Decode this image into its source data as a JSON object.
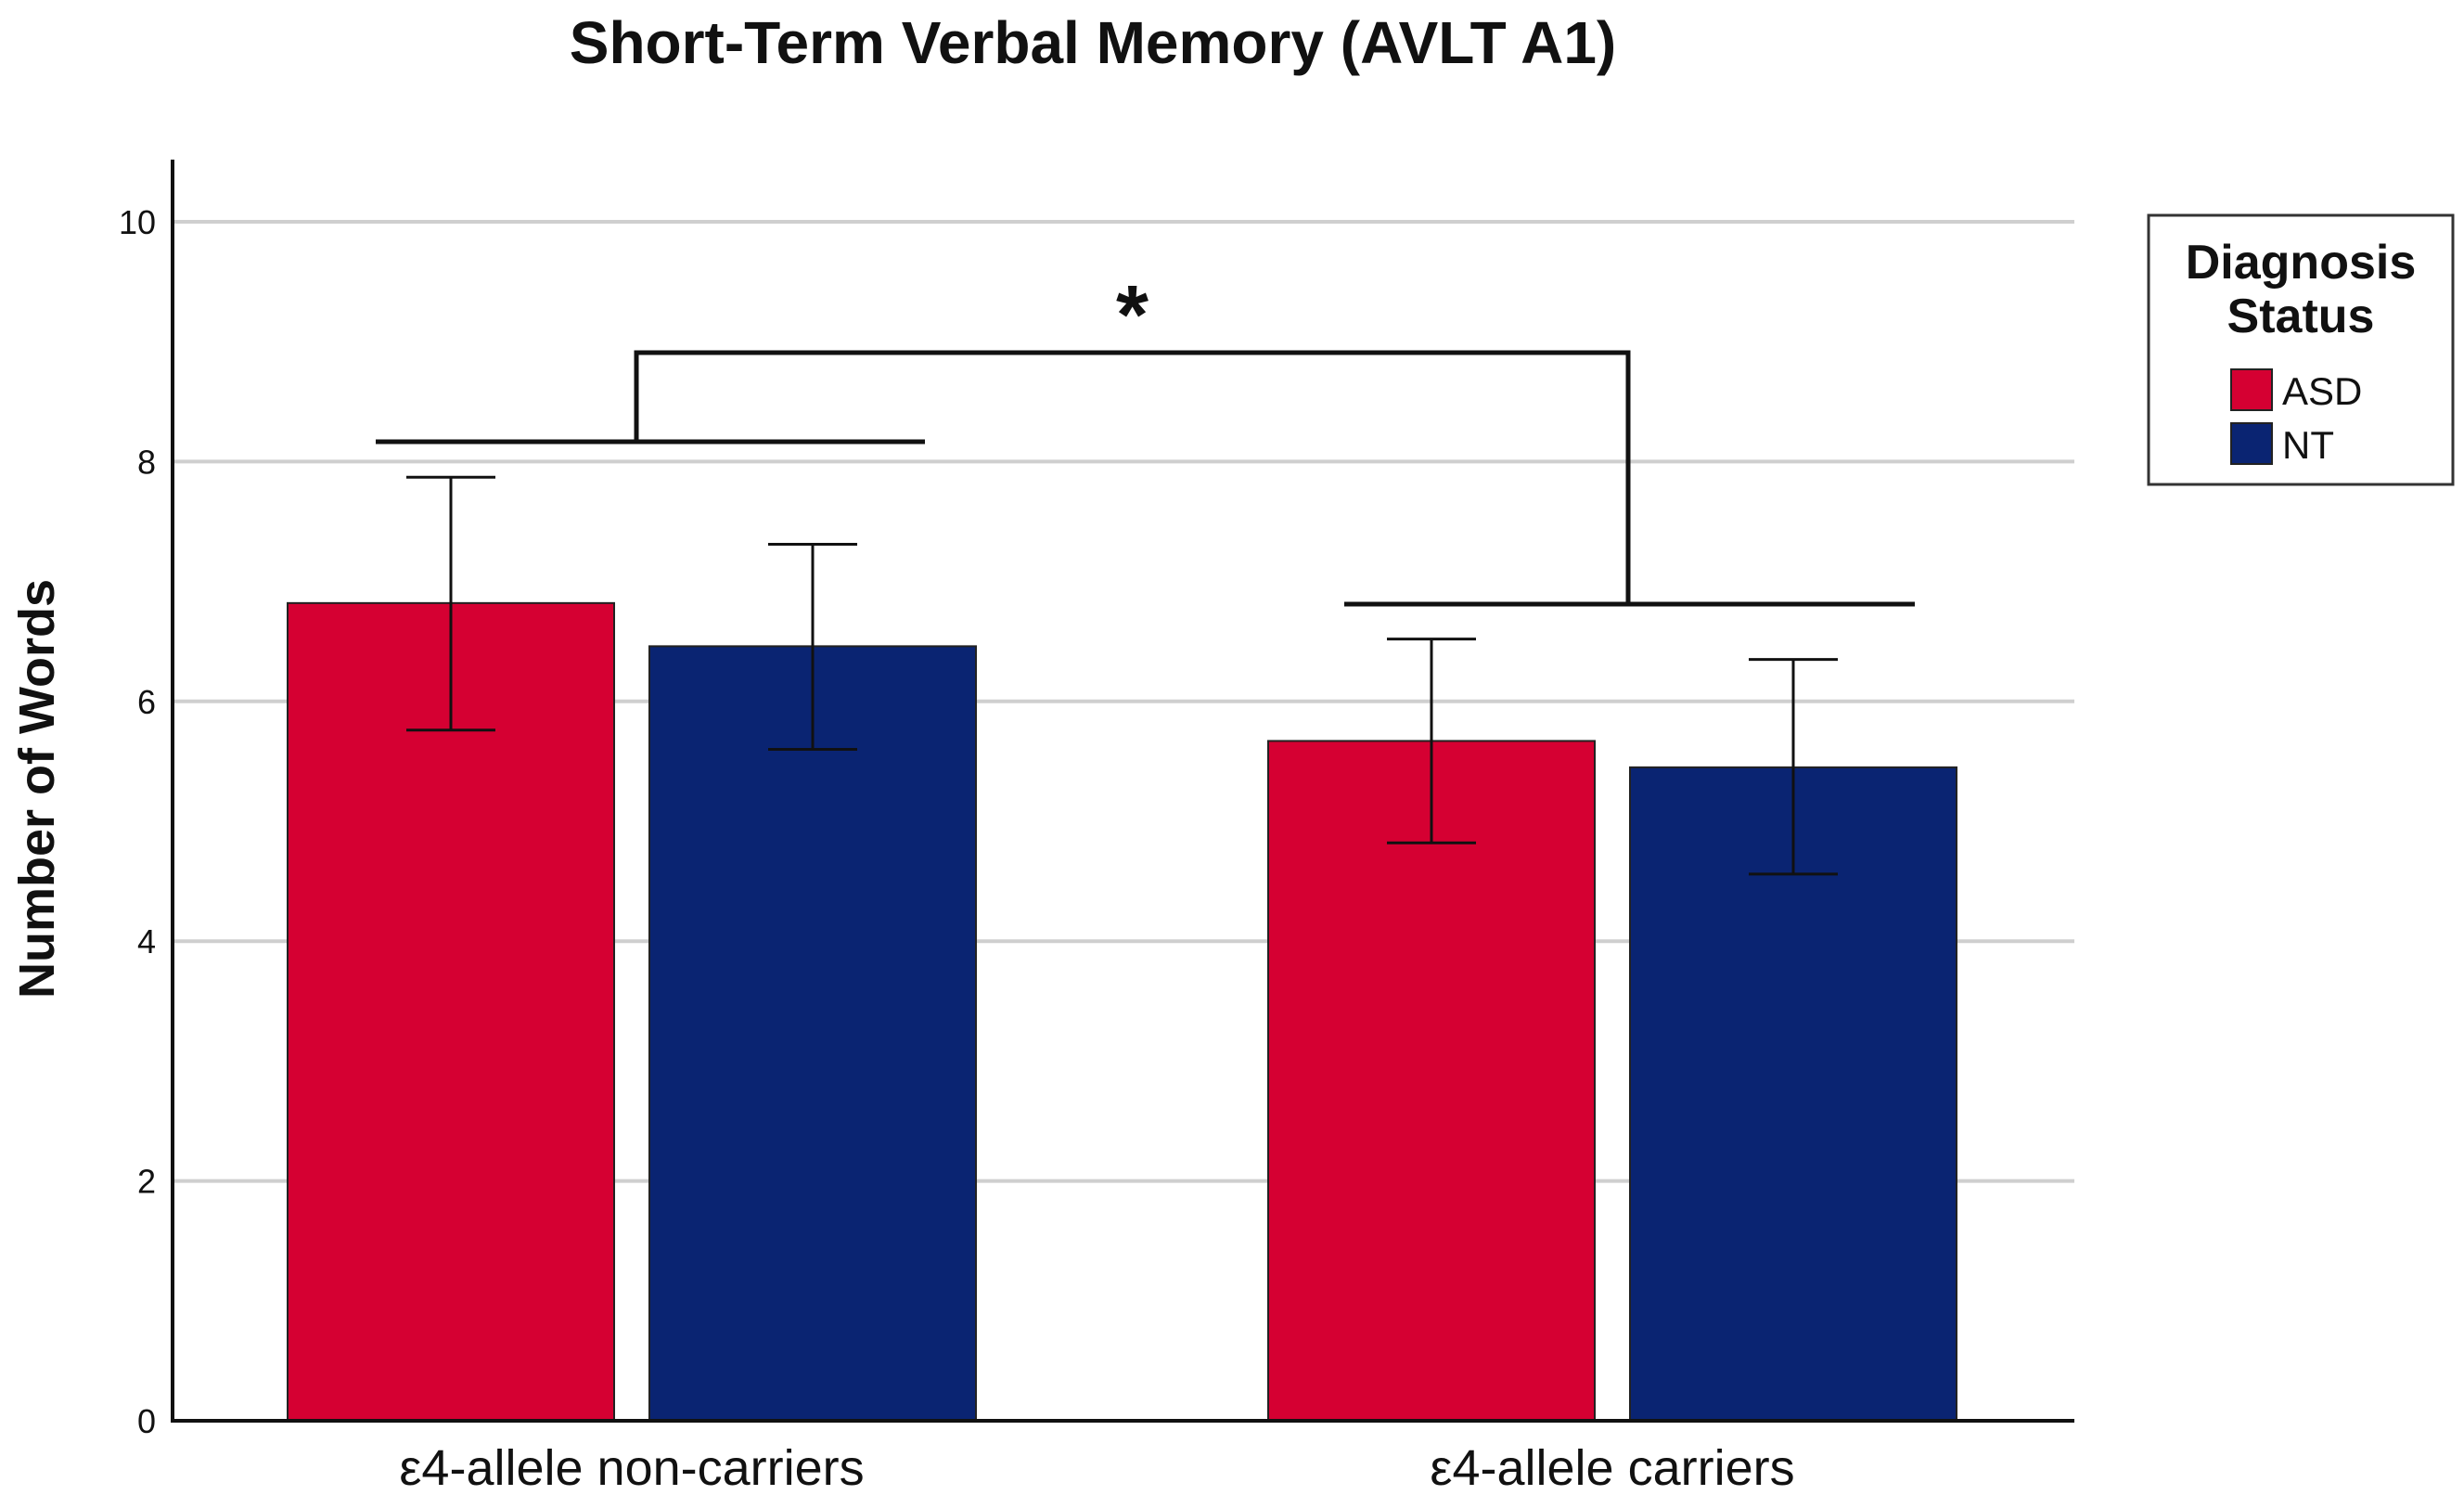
{
  "chart_data": {
    "type": "bar",
    "title": "Short-Term Verbal Memory (AVLT A1)",
    "xlabel": "",
    "ylabel": "Number of Words",
    "ylim": [
      0,
      10.5
    ],
    "yticks": [
      0,
      2,
      4,
      6,
      8,
      10
    ],
    "grid": true,
    "categories": [
      "ε4-allele non-carriers",
      "ε4-allele carriers"
    ],
    "series": [
      {
        "name": "ASD",
        "color": "#D50032",
        "values": [
          6.82,
          5.67
        ],
        "error_low": [
          5.76,
          4.82
        ],
        "error_high": [
          7.87,
          6.52
        ]
      },
      {
        "name": "NT",
        "color": "#0A2472",
        "values": [
          6.46,
          5.45
        ],
        "error_low": [
          5.6,
          4.56
        ],
        "error_high": [
          7.31,
          6.35
        ]
      }
    ],
    "legend": {
      "title": "Diagnosis Status",
      "placement": "top-right"
    },
    "annotations": [
      {
        "type": "significance-bracket",
        "text": "*",
        "between": [
          "ε4-allele non-carriers",
          "ε4-allele carriers"
        ]
      }
    ]
  }
}
